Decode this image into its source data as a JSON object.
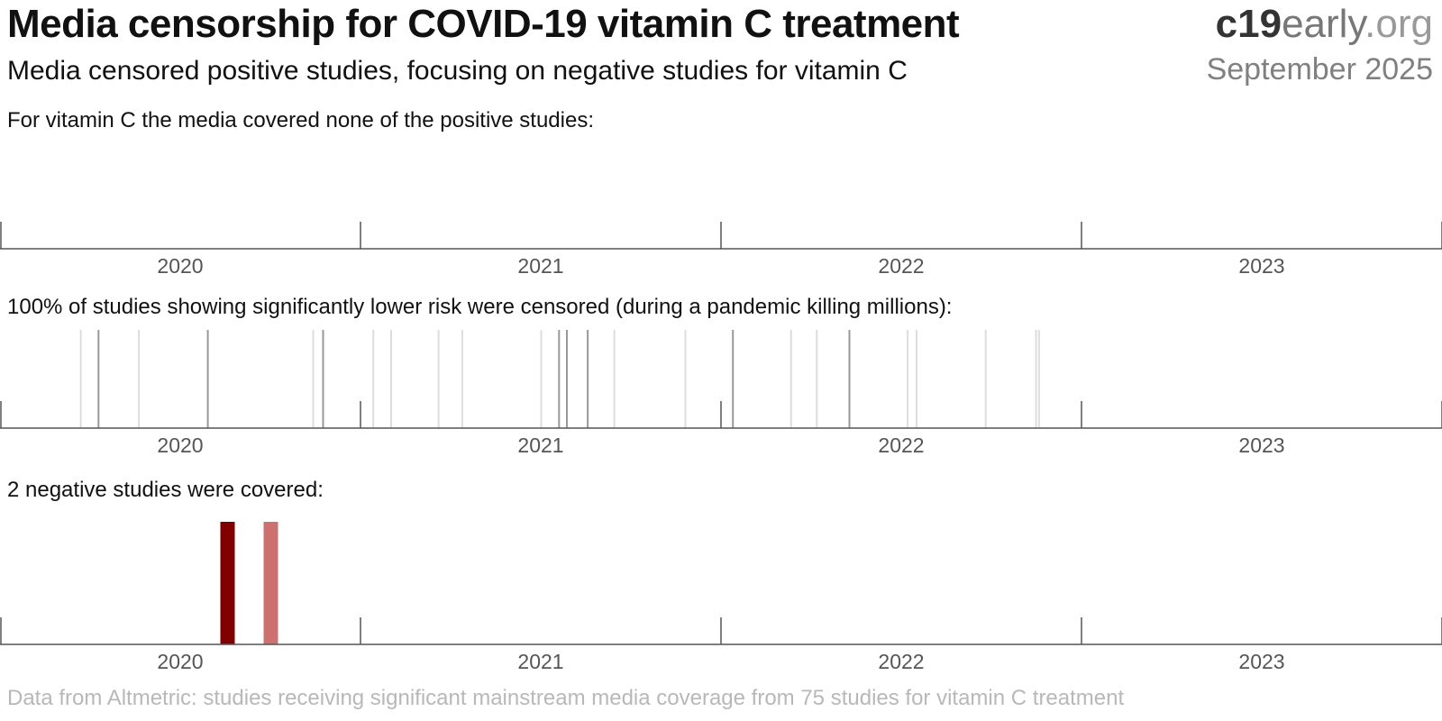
{
  "header": {
    "title": "Media censorship for COVID-19 vitamin C treatment",
    "subtitle": "Media censored positive studies, focusing on negative studies for vitamin C",
    "brand": {
      "bold": "c19",
      "middle": "early",
      "light": ".org"
    },
    "date": "September 2025"
  },
  "footer": {
    "note": "Data from Altmetric: studies receiving significant mainstream media coverage from 75 studies for vitamin C treatment"
  },
  "colors": {
    "axis": "#555555",
    "censored_significant": "#999999",
    "censored_other": "#dddddd",
    "covered_dark": "#800000",
    "covered_light": "#cc7070"
  },
  "chart_data": [
    {
      "type": "bar",
      "caption": "For vitamin C the media covered none of the positive studies:",
      "x_axis": {
        "ticks": [
          "2020",
          "2021",
          "2022",
          "2023"
        ]
      },
      "studies": []
    },
    {
      "type": "bar",
      "caption": "100% of studies showing significantly lower risk were censored (during a pandemic killing millions):",
      "x_axis": {
        "ticks": [
          "2020",
          "2021",
          "2022",
          "2023"
        ]
      },
      "studies": [
        {
          "date": "2020-03-23",
          "significant": false
        },
        {
          "date": "2020-04-10",
          "significant": true
        },
        {
          "date": "2020-05-21",
          "significant": false
        },
        {
          "date": "2020-07-30",
          "significant": true
        },
        {
          "date": "2020-11-14",
          "significant": false
        },
        {
          "date": "2020-11-24",
          "significant": true
        },
        {
          "date": "2021-01-14",
          "significant": false
        },
        {
          "date": "2021-02-01",
          "significant": false
        },
        {
          "date": "2021-03-21",
          "significant": false
        },
        {
          "date": "2021-04-14",
          "significant": false
        },
        {
          "date": "2021-07-03",
          "significant": false
        },
        {
          "date": "2021-07-21",
          "significant": true
        },
        {
          "date": "2021-07-29",
          "significant": true
        },
        {
          "date": "2021-08-19",
          "significant": true
        },
        {
          "date": "2021-09-15",
          "significant": false
        },
        {
          "date": "2021-11-26",
          "significant": false
        },
        {
          "date": "2022-01-13",
          "significant": true
        },
        {
          "date": "2022-03-13",
          "significant": false
        },
        {
          "date": "2022-04-08",
          "significant": false
        },
        {
          "date": "2022-05-11",
          "significant": true
        },
        {
          "date": "2022-07-09",
          "significant": false
        },
        {
          "date": "2022-07-18",
          "significant": false
        },
        {
          "date": "2022-09-26",
          "significant": false
        },
        {
          "date": "2022-11-16",
          "significant": false
        },
        {
          "date": "2022-11-19",
          "significant": false
        }
      ]
    },
    {
      "type": "bar",
      "caption": "2 negative studies were covered:",
      "x_axis": {
        "ticks": [
          "2020",
          "2021",
          "2022",
          "2023"
        ]
      },
      "studies": [
        {
          "date": "2020-08-19",
          "tone": "dark"
        },
        {
          "date": "2020-10-02",
          "tone": "light"
        }
      ]
    }
  ]
}
